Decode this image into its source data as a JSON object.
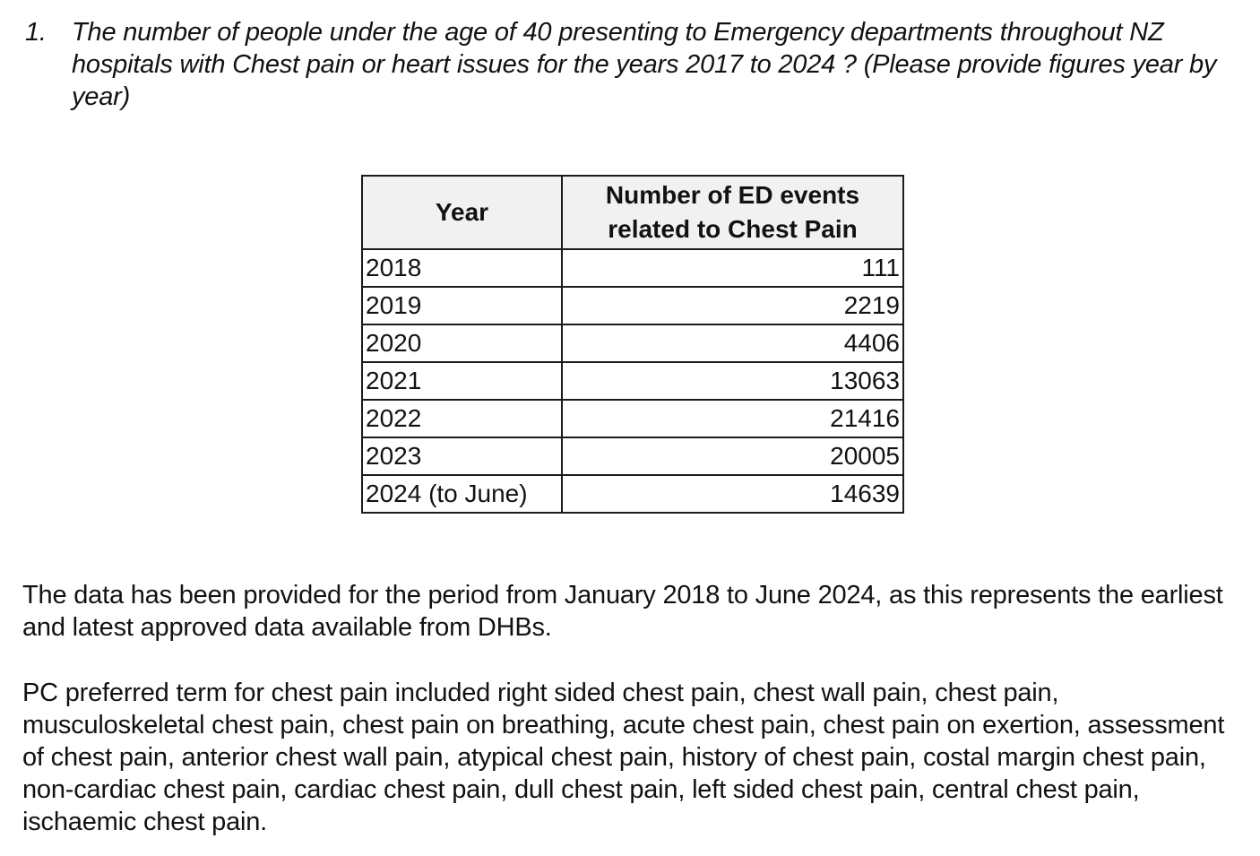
{
  "question": {
    "number": "1.",
    "text": "The number of people under the age of 40 presenting to Emergency departments throughout NZ hospitals with Chest pain or heart issues for the years 2017 to 2024 ? (Please provide figures year by year)"
  },
  "table": {
    "headers": [
      "Year",
      "Number of ED events related to Chest Pain"
    ],
    "rows": [
      {
        "year": "2018",
        "events": "111"
      },
      {
        "year": "2019",
        "events": "2219"
      },
      {
        "year": "2020",
        "events": "4406"
      },
      {
        "year": "2021",
        "events": "13063"
      },
      {
        "year": "2022",
        "events": "21416"
      },
      {
        "year": "2023",
        "events": "20005"
      },
      {
        "year": "2024 (to June)",
        "events": "14639"
      }
    ],
    "header_background": "#f1f1f1",
    "border_color": "#1c1c1c"
  },
  "paragraphs": [
    "The data has been provided for the period from January 2018 to June 2024, as this represents the earliest and latest approved data available from DHBs.",
    "PC preferred term for chest pain included right sided chest pain, chest wall pain, chest pain, musculoskeletal chest pain, chest pain on breathing, acute chest pain, chest pain on exertion, assessment of chest pain, anterior chest wall pain, atypical chest pain, history of chest pain, costal margin chest pain, non-cardiac chest pain, cardiac chest pain, dull chest pain, left sided chest pain, central chest pain, ischaemic chest pain."
  ]
}
